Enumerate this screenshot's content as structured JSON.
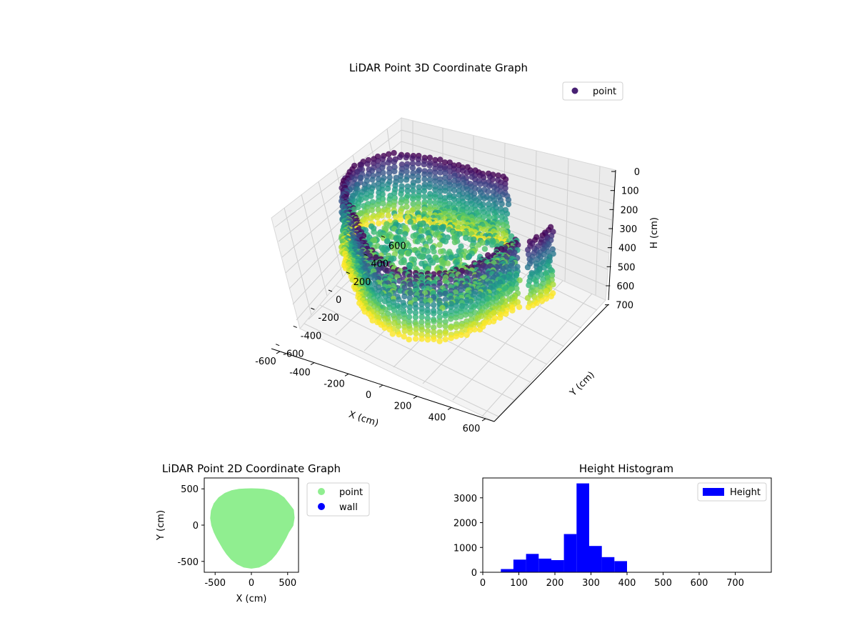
{
  "chart_data": [
    {
      "type": "scatter3d",
      "title": "LiDAR Point 3D Coordinate Graph",
      "xlabel": "X (cm)",
      "ylabel": "Y (cm)",
      "zlabel": "H (cm)",
      "xlim": [
        -650,
        650
      ],
      "ylim": [
        -650,
        650
      ],
      "zlim": [
        0,
        780
      ],
      "z_inverted": true,
      "xticks": [
        -600,
        -400,
        -200,
        0,
        200,
        400,
        600
      ],
      "yticks": [
        -600,
        -400,
        -200,
        0,
        200,
        400,
        600
      ],
      "zticks": [
        0,
        100,
        200,
        300,
        400,
        500,
        600,
        700
      ],
      "colormap": "viridis",
      "legend": {
        "position": "top-right",
        "entries": [
          "point"
        ]
      },
      "series": [
        {
          "name": "point",
          "shape": "ring-wall",
          "radius_min": 450,
          "radius_max": 600,
          "height_min": 0,
          "height_max": 450,
          "gap_start_deg": 20,
          "gap_end_deg": 70
        }
      ]
    },
    {
      "type": "scatter",
      "title": "LiDAR Point 2D Coordinate Graph",
      "xlabel": "X (cm)",
      "ylabel": "Y (cm)",
      "xlim": [
        -650,
        650
      ],
      "ylim": [
        -650,
        650
      ],
      "xticks": [
        -500,
        0,
        500
      ],
      "yticks": [
        -500,
        0,
        500
      ],
      "legend": {
        "position": "outside-right",
        "entries": [
          "point",
          "wall"
        ]
      },
      "series": [
        {
          "name": "point",
          "color": "#90ee90",
          "shape": "filled-disk",
          "radius_approx": 580
        },
        {
          "name": "wall",
          "color": "#0000ff",
          "points": []
        }
      ]
    },
    {
      "type": "bar",
      "title": "Height Histogram",
      "xlim": [
        0,
        800
      ],
      "ylim": [
        0,
        3800
      ],
      "xticks": [
        0,
        100,
        200,
        300,
        400,
        500,
        600,
        700
      ],
      "yticks": [
        0,
        1000,
        2000,
        3000
      ],
      "color": "#0000ff",
      "legend": {
        "position": "top-right",
        "entries": [
          "Height"
        ]
      },
      "bins": [
        {
          "x0": 50,
          "x1": 85,
          "value": 130
        },
        {
          "x0": 85,
          "x1": 120,
          "value": 510
        },
        {
          "x0": 120,
          "x1": 155,
          "value": 740
        },
        {
          "x0": 155,
          "x1": 190,
          "value": 550
        },
        {
          "x0": 190,
          "x1": 225,
          "value": 490
        },
        {
          "x0": 225,
          "x1": 260,
          "value": 1540
        },
        {
          "x0": 260,
          "x1": 295,
          "value": 3580
        },
        {
          "x0": 295,
          "x1": 330,
          "value": 1060
        },
        {
          "x0": 330,
          "x1": 365,
          "value": 610
        },
        {
          "x0": 365,
          "x1": 400,
          "value": 450
        }
      ]
    }
  ]
}
